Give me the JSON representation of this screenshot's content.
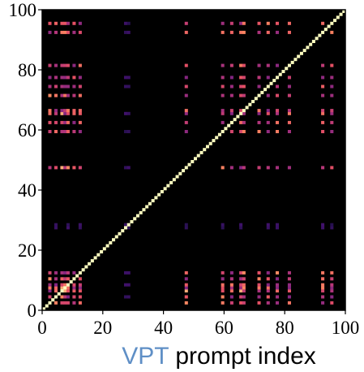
{
  "chart_data": {
    "type": "heatmap",
    "title": "",
    "xlabel_prefix": "VPT",
    "xlabel_rest": " prompt index",
    "xlabel_prefix_color": "#5f8fc6",
    "ylabel": "",
    "x_range": [
      0,
      100
    ],
    "y_range": [
      0,
      100
    ],
    "x_ticks": [
      "0",
      "20",
      "40",
      "60",
      "80",
      "100"
    ],
    "y_ticks": [
      "0",
      "20",
      "40",
      "60",
      "80",
      "100"
    ],
    "colormap": "magma",
    "background_color": "#000000",
    "diagonal_value": 1.0,
    "highlight_indices": [
      2,
      4,
      6,
      7,
      8,
      10,
      12,
      47,
      59,
      62,
      65,
      66,
      71,
      74,
      77,
      81,
      92,
      95
    ],
    "faint_indices": [
      4,
      8,
      12,
      28,
      47,
      59,
      65,
      74,
      77,
      92,
      95
    ],
    "faint_rows": [
      27,
      28
    ],
    "strong_pairs": [
      [
        6,
        6
      ],
      [
        7,
        7
      ],
      [
        6,
        7
      ],
      [
        7,
        6
      ],
      [
        6,
        47
      ],
      [
        47,
        6
      ],
      [
        6,
        65
      ],
      [
        65,
        6
      ],
      [
        65,
        65
      ]
    ],
    "grid": false
  }
}
